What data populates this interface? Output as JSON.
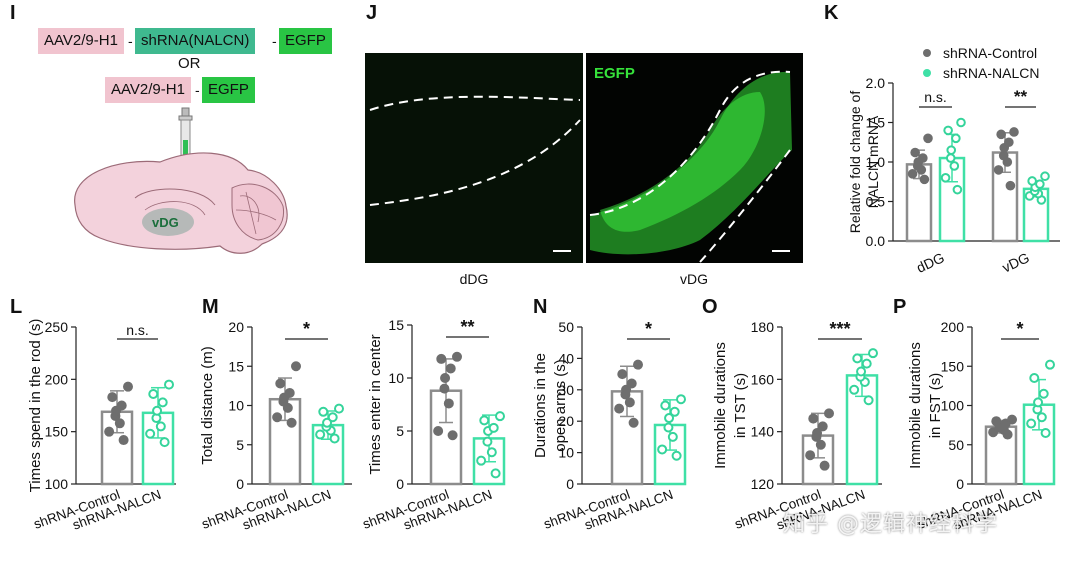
{
  "colors": {
    "control": "#8c8c8c",
    "control_dot": "#6e6e6e",
    "nalcn": "#3fe0a6",
    "nalcn_dot": "#35d49b",
    "axis": "#222222",
    "construct_pink": "#f1c4cf",
    "construct_teal": "#3fb98f",
    "construct_green": "#29c544",
    "brain_fill": "#f3d2dc",
    "fluor_green": "#36e23b"
  },
  "panel_labels": {
    "I": "I",
    "J": "J",
    "K": "K",
    "L": "L",
    "M": "M",
    "N": "N",
    "O": "O",
    "P": "P"
  },
  "panel_i": {
    "construct1": [
      "AAV2/9-H1",
      "shRNA(NALCN)",
      "EGFP"
    ],
    "or_text": "OR",
    "construct2": [
      "AAV2/9-H1",
      "EGFP"
    ],
    "region_label": "vDG"
  },
  "panel_j": {
    "overlay_label": "EGFP",
    "left_caption": "dDG",
    "right_caption": "vDG"
  },
  "watermark": "知乎 @逻辑神经科学",
  "chart_data": [
    {
      "id": "K",
      "type": "bar",
      "ylabel": "Relative fold change of NALCN mRNA",
      "ylim": [
        0,
        2.0
      ],
      "yticks": [
        0.0,
        0.5,
        1.0,
        1.5,
        2.0
      ],
      "ytick_labels": [
        "0.0",
        "0.5",
        "1.0",
        "1.5",
        "2.0"
      ],
      "categories": [
        "dDG",
        "vDG"
      ],
      "legend": [
        "shRNA-Control",
        "shRNA-NALCN"
      ],
      "legend_position": "top-right",
      "series": [
        {
          "name": "shRNA-Control",
          "values": [
            0.97,
            1.12
          ],
          "errors": [
            0.18,
            0.25
          ],
          "points": [
            [
              0.78,
              0.85,
              0.9,
              0.95,
              1.0,
              1.05,
              1.12,
              1.3
            ],
            [
              0.7,
              0.9,
              1.0,
              1.08,
              1.18,
              1.25,
              1.35,
              1.38
            ]
          ]
        },
        {
          "name": "shRNA-NALCN",
          "values": [
            1.05,
            0.66
          ],
          "errors": [
            0.3,
            0.1
          ],
          "points": [
            [
              0.65,
              0.8,
              0.95,
              1.05,
              1.15,
              1.3,
              1.4,
              1.5
            ],
            [
              0.52,
              0.57,
              0.6,
              0.63,
              0.68,
              0.72,
              0.76,
              0.82
            ]
          ]
        }
      ],
      "significance": [
        "n.s.",
        "**"
      ]
    },
    {
      "id": "L",
      "type": "bar",
      "ylabel": "Times spend in the rod (s)",
      "ylim": [
        100,
        250
      ],
      "yticks": [
        100,
        150,
        200,
        250
      ],
      "ytick_labels": [
        "100",
        "150",
        "200",
        "250"
      ],
      "categories": [
        "shRNA-Control",
        "shRNA-NALCN"
      ],
      "values": [
        169,
        168
      ],
      "errors": [
        20,
        24
      ],
      "points": [
        [
          142,
          150,
          158,
          165,
          170,
          175,
          183,
          193
        ],
        [
          140,
          148,
          155,
          163,
          170,
          178,
          186,
          195
        ]
      ],
      "significance": "n.s."
    },
    {
      "id": "M",
      "type": "bar",
      "ylabel": "Total distance (m)",
      "ylim": [
        0,
        20
      ],
      "yticks": [
        0,
        5,
        10,
        15,
        20
      ],
      "ytick_labels": [
        "0",
        "5",
        "10",
        "15",
        "20"
      ],
      "categories": [
        "shRNA-Control",
        "shRNA-NALCN"
      ],
      "values": [
        10.8,
        7.5
      ],
      "errors": [
        2.7,
        1.8
      ],
      "points": [
        [
          7.8,
          8.5,
          9.7,
          10.5,
          11.0,
          11.6,
          12.8,
          15.0
        ],
        [
          5.8,
          6.3,
          6.8,
          7.3,
          7.8,
          8.5,
          9.2,
          9.6
        ]
      ],
      "significance": "*"
    },
    {
      "id": "N1",
      "type": "bar",
      "ylabel": "Times enter in center",
      "ylim": [
        0,
        15
      ],
      "yticks": [
        0,
        5,
        10,
        15
      ],
      "ytick_labels": [
        "0",
        "5",
        "10",
        "15"
      ],
      "categories": [
        "shRNA-Control",
        "shRNA-NALCN"
      ],
      "values": [
        8.8,
        4.3
      ],
      "errors": [
        3.0,
        2.2
      ],
      "points": [
        [
          4.6,
          5.0,
          7.6,
          9.0,
          10.0,
          10.9,
          11.8,
          12.0
        ],
        [
          1.0,
          2.2,
          3.0,
          4.0,
          5.0,
          5.3,
          6.0,
          6.4
        ]
      ],
      "significance": "**"
    },
    {
      "id": "N",
      "type": "bar",
      "ylabel": "Durations in the open arms (s)",
      "ylim": [
        0,
        50
      ],
      "yticks": [
        0,
        10,
        20,
        30,
        40,
        50
      ],
      "ytick_labels": [
        "0",
        "10",
        "20",
        "30",
        "40",
        "50"
      ],
      "categories": [
        "shRNA-Control",
        "shRNA-NALCN"
      ],
      "values": [
        29.5,
        18.8
      ],
      "errors": [
        8.0,
        8.0
      ],
      "points": [
        [
          19.5,
          24,
          26,
          28.5,
          30,
          32,
          35,
          38
        ],
        [
          9,
          11,
          15,
          18,
          21,
          23,
          25,
          27
        ]
      ],
      "significance": "*"
    },
    {
      "id": "O",
      "type": "bar",
      "ylabel": "Immobile durations in TST (s)",
      "ylim": [
        120,
        180
      ],
      "yticks": [
        120,
        140,
        160,
        180
      ],
      "ytick_labels": [
        "120",
        "140",
        "160",
        "180"
      ],
      "categories": [
        "shRNA-Control",
        "shRNA-NALCN"
      ],
      "values": [
        138.5,
        161.5
      ],
      "errors": [
        8.5,
        8.0
      ],
      "points": [
        [
          127,
          131,
          135,
          138,
          139.5,
          142,
          145,
          147
        ],
        [
          152,
          156,
          159,
          161,
          163,
          166,
          168,
          170
        ]
      ],
      "significance": "***"
    },
    {
      "id": "P",
      "type": "bar",
      "ylabel": "Immobile durations in FST (s)",
      "ylim": [
        0,
        200
      ],
      "yticks": [
        0,
        50,
        100,
        150,
        200
      ],
      "ytick_labels": [
        "0",
        "50",
        "100",
        "150",
        "200"
      ],
      "categories": [
        "shRNA-Control",
        "shRNA-NALCN"
      ],
      "values": [
        73,
        101
      ],
      "errors": [
        8,
        32
      ],
      "points": [
        [
          63,
          66,
          69,
          72,
          74,
          77,
          80,
          82
        ],
        [
          65,
          77,
          85,
          95,
          104,
          115,
          135,
          152
        ]
      ],
      "significance": "*"
    }
  ]
}
